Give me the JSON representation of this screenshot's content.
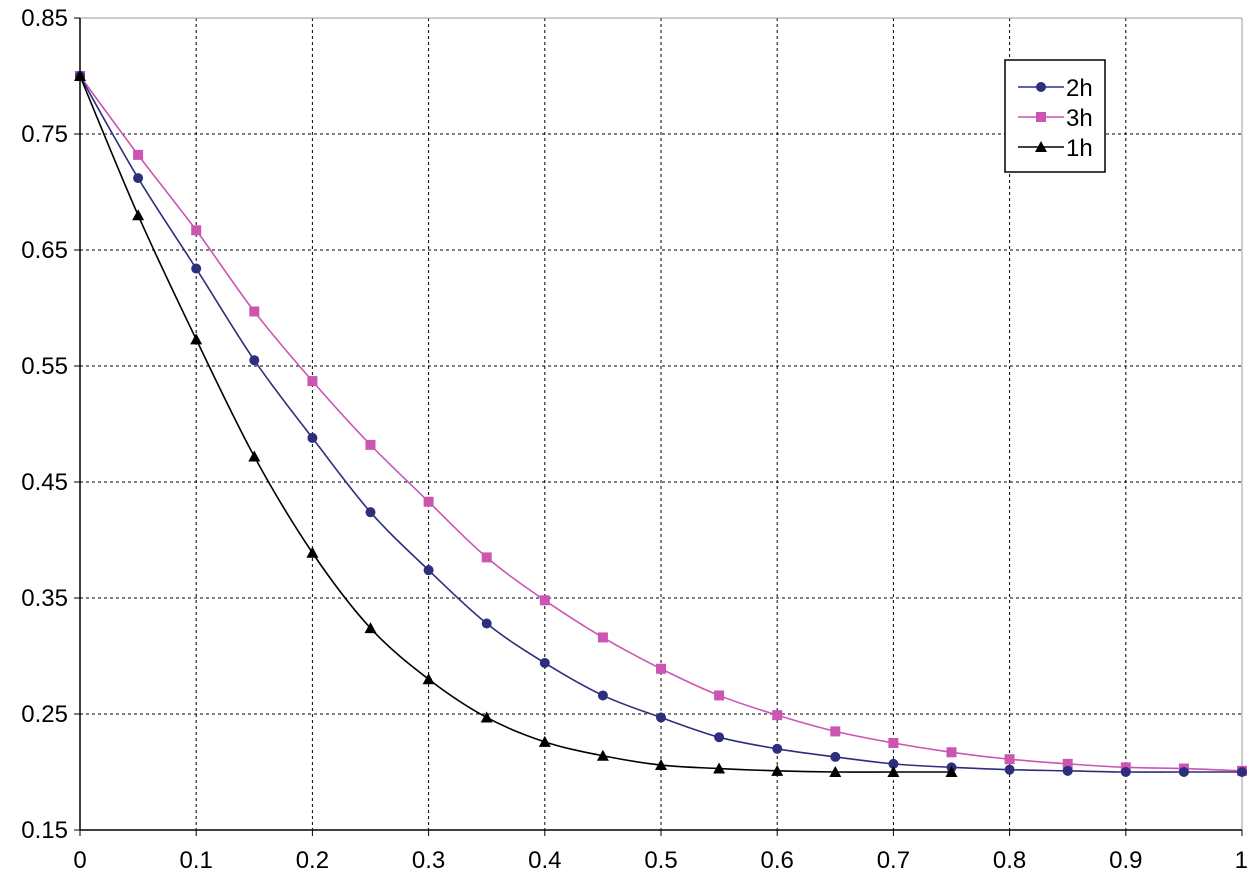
{
  "chart_data": {
    "type": "line",
    "xlim": [
      0,
      1
    ],
    "ylim": [
      0.15,
      0.85
    ],
    "x_ticks": [
      "0",
      "0.1",
      "0.2",
      "0.3",
      "0.4",
      "0.5",
      "0.6",
      "0.7",
      "0.8",
      "0.9",
      "1"
    ],
    "y_ticks": [
      "0.15",
      "0.25",
      "0.35",
      "0.45",
      "0.55",
      "0.65",
      "0.75",
      "0.85"
    ],
    "grid": true,
    "legend_position": "top-right",
    "series": [
      {
        "name": "2h",
        "color": "#2e2e7e",
        "marker": "circle",
        "x": [
          0,
          0.05,
          0.1,
          0.15,
          0.2,
          0.25,
          0.3,
          0.35,
          0.4,
          0.45,
          0.5,
          0.55,
          0.6,
          0.65,
          0.7,
          0.75,
          0.8,
          0.85,
          0.9,
          0.95,
          1
        ],
        "y": [
          0.8,
          0.712,
          0.634,
          0.555,
          0.488,
          0.424,
          0.374,
          0.328,
          0.294,
          0.266,
          0.247,
          0.23,
          0.22,
          0.213,
          0.207,
          0.204,
          0.202,
          0.201,
          0.2,
          0.2,
          0.2
        ]
      },
      {
        "name": "3h",
        "color": "#cc55b2",
        "marker": "square",
        "x": [
          0,
          0.05,
          0.1,
          0.15,
          0.2,
          0.25,
          0.3,
          0.35,
          0.4,
          0.45,
          0.5,
          0.55,
          0.6,
          0.65,
          0.7,
          0.75,
          0.8,
          0.85,
          0.9,
          0.95,
          1
        ],
        "y": [
          0.8,
          0.732,
          0.667,
          0.597,
          0.537,
          0.482,
          0.433,
          0.385,
          0.348,
          0.316,
          0.289,
          0.266,
          0.249,
          0.235,
          0.225,
          0.217,
          0.211,
          0.207,
          0.204,
          0.203,
          0.201
        ]
      },
      {
        "name": "1h",
        "color": "#000000",
        "marker": "triangle",
        "x": [
          0,
          0.05,
          0.1,
          0.15,
          0.2,
          0.25,
          0.3,
          0.35,
          0.4,
          0.45,
          0.5,
          0.55,
          0.6,
          0.65,
          0.7,
          0.75
        ],
        "y": [
          0.8,
          0.68,
          0.573,
          0.472,
          0.389,
          0.324,
          0.28,
          0.247,
          0.226,
          0.214,
          0.206,
          0.203,
          0.201,
          0.2,
          0.2,
          0.2
        ]
      }
    ]
  }
}
